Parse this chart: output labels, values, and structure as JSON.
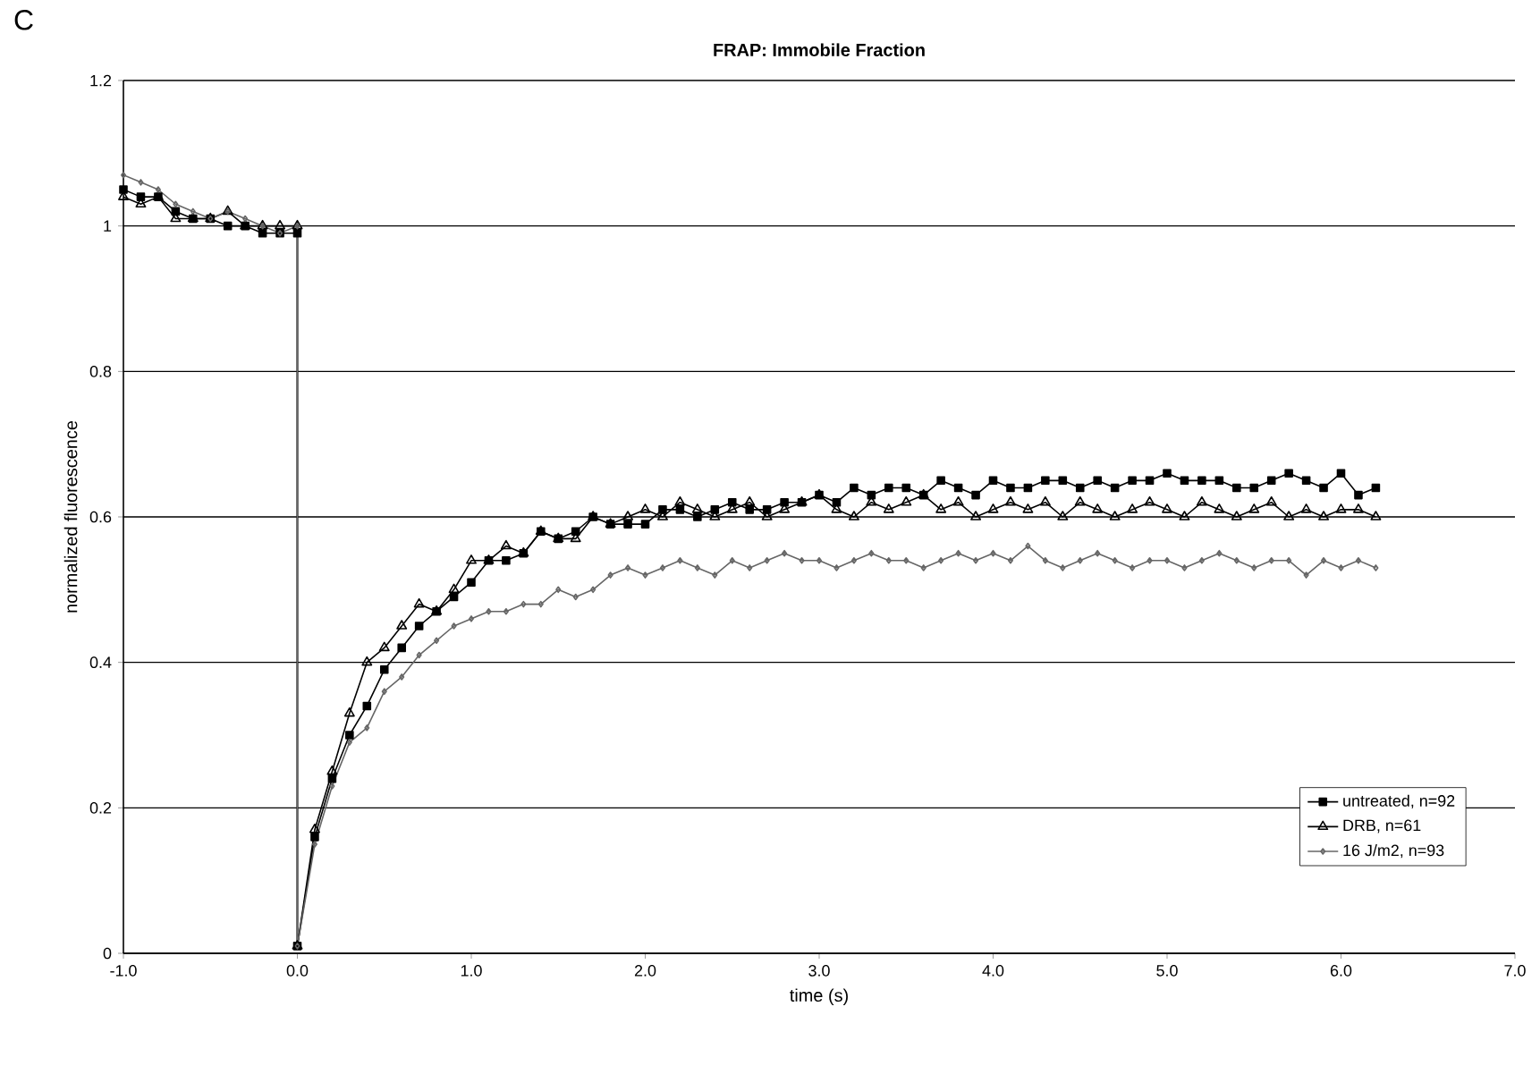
{
  "chart_data": {
    "type": "line",
    "title": "FRAP: Immobile Fraction",
    "xlabel": "time (s)",
    "ylabel": "normalized fluorescence",
    "annotations": [
      "C"
    ],
    "x": [
      -1.0,
      -0.9,
      -0.8,
      -0.7,
      -0.6,
      -0.5,
      -0.4,
      -0.3,
      -0.2,
      -0.1,
      0.0,
      0.0,
      0.1,
      0.2,
      0.3,
      0.4,
      0.5,
      0.6,
      0.7,
      0.8,
      0.9,
      1.0,
      1.1,
      1.2,
      1.3,
      1.4,
      1.5,
      1.6,
      1.7,
      1.8,
      1.9,
      2.0,
      2.1,
      2.2,
      2.3,
      2.4,
      2.5,
      2.6,
      2.7,
      2.8,
      2.9,
      3.0,
      3.1,
      3.2,
      3.3,
      3.4,
      3.5,
      3.6,
      3.7,
      3.8,
      3.9,
      4.0,
      4.1,
      4.2,
      4.3,
      4.4,
      4.5,
      4.6,
      4.7,
      4.8,
      4.9,
      5.0,
      5.1,
      5.2,
      5.3,
      5.4,
      5.5,
      5.6,
      5.7,
      5.8,
      5.9,
      6.0,
      6.1,
      6.2
    ],
    "series": [
      {
        "name": "untreated, n=92",
        "color": "#000000",
        "marker": "square",
        "values": [
          1.05,
          1.04,
          1.04,
          1.02,
          1.01,
          1.01,
          1.0,
          1.0,
          0.99,
          0.99,
          0.99,
          0.01,
          0.16,
          0.24,
          0.3,
          0.34,
          0.39,
          0.42,
          0.45,
          0.47,
          0.49,
          0.51,
          0.54,
          0.54,
          0.55,
          0.58,
          0.57,
          0.58,
          0.6,
          0.59,
          0.59,
          0.59,
          0.61,
          0.61,
          0.6,
          0.61,
          0.62,
          0.61,
          0.61,
          0.62,
          0.62,
          0.63,
          0.62,
          0.64,
          0.63,
          0.64,
          0.64,
          0.63,
          0.65,
          0.64,
          0.63,
          0.65,
          0.64,
          0.64,
          0.65,
          0.65,
          0.64,
          0.65,
          0.64,
          0.65,
          0.65,
          0.66,
          0.65,
          0.65,
          0.65,
          0.64,
          0.64,
          0.65,
          0.66,
          0.65,
          0.64,
          0.66,
          0.63,
          0.64
        ]
      },
      {
        "name": "DRB, n=61",
        "color": "#000000",
        "marker": "triangle",
        "values": [
          1.04,
          1.03,
          1.04,
          1.01,
          1.01,
          1.01,
          1.02,
          1.0,
          1.0,
          1.0,
          1.0,
          0.01,
          0.17,
          0.25,
          0.33,
          0.4,
          0.42,
          0.45,
          0.48,
          0.47,
          0.5,
          0.54,
          0.54,
          0.56,
          0.55,
          0.58,
          0.57,
          0.57,
          0.6,
          0.59,
          0.6,
          0.61,
          0.6,
          0.62,
          0.61,
          0.6,
          0.61,
          0.62,
          0.6,
          0.61,
          0.62,
          0.63,
          0.61,
          0.6,
          0.62,
          0.61,
          0.62,
          0.63,
          0.61,
          0.62,
          0.6,
          0.61,
          0.62,
          0.61,
          0.62,
          0.6,
          0.62,
          0.61,
          0.6,
          0.61,
          0.62,
          0.61,
          0.6,
          0.62,
          0.61,
          0.6,
          0.61,
          0.62,
          0.6,
          0.61,
          0.6,
          0.61,
          0.61,
          0.6
        ]
      },
      {
        "name": "16 J/m2, n=93",
        "color": "#666666",
        "marker": "diamond",
        "values": [
          1.07,
          1.06,
          1.05,
          1.03,
          1.02,
          1.01,
          1.02,
          1.01,
          1.0,
          0.99,
          1.0,
          0.01,
          0.15,
          0.23,
          0.29,
          0.31,
          0.36,
          0.38,
          0.41,
          0.43,
          0.45,
          0.46,
          0.47,
          0.47,
          0.48,
          0.48,
          0.5,
          0.49,
          0.5,
          0.52,
          0.53,
          0.52,
          0.53,
          0.54,
          0.53,
          0.52,
          0.54,
          0.53,
          0.54,
          0.55,
          0.54,
          0.54,
          0.53,
          0.54,
          0.55,
          0.54,
          0.54,
          0.53,
          0.54,
          0.55,
          0.54,
          0.55,
          0.54,
          0.56,
          0.54,
          0.53,
          0.54,
          0.55,
          0.54,
          0.53,
          0.54,
          0.54,
          0.53,
          0.54,
          0.55,
          0.54,
          0.53,
          0.54,
          0.54,
          0.52,
          0.54,
          0.53,
          0.54,
          0.53
        ]
      }
    ],
    "xlim": [
      -1.0,
      7.0
    ],
    "ylim": [
      0,
      1.2
    ],
    "xticks": [
      {
        "value": -1.0,
        "label": "-1.0"
      },
      {
        "value": 0.0,
        "label": "0.0"
      },
      {
        "value": 1.0,
        "label": "1.0"
      },
      {
        "value": 2.0,
        "label": "2.0"
      },
      {
        "value": 3.0,
        "label": "3.0"
      },
      {
        "value": 4.0,
        "label": "4.0"
      },
      {
        "value": 5.0,
        "label": "5.0"
      },
      {
        "value": 6.0,
        "label": "6.0"
      },
      {
        "value": 7.0,
        "label": "7.0"
      }
    ],
    "yticks": [
      0,
      0.2,
      0.4,
      0.6,
      0.8,
      1,
      1.2
    ],
    "grid": "y",
    "legend": "bottom right"
  }
}
